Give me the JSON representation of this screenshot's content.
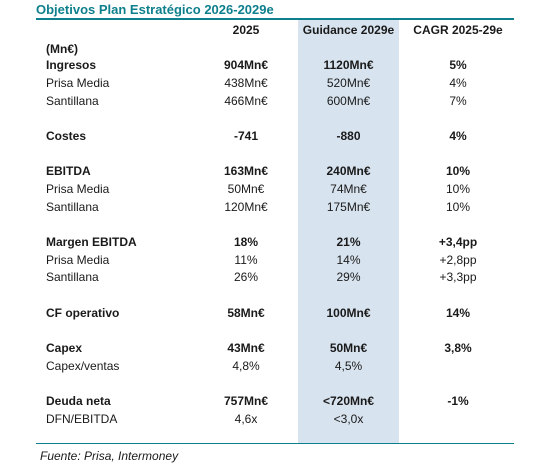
{
  "title": "Objetivos Plan Estratégico 2026-2029e",
  "header": {
    "col_2025": "2025",
    "col_guidance": "Guidance 2029e",
    "col_cagr": "CAGR 2025-29e"
  },
  "units": "(Mn€)",
  "rows": [
    {
      "label": "Ingresos",
      "v2025": "904Mn€",
      "guidance": "1120Mn€",
      "cagr": "5%"
    },
    {
      "label": "Prisa Media",
      "v2025": "438Mn€",
      "guidance": "520Mn€",
      "cagr": "4%"
    },
    {
      "label": "Santillana",
      "v2025": "466Mn€",
      "guidance": "600Mn€",
      "cagr": "7%"
    },
    {
      "label": "Costes",
      "v2025": "-741",
      "guidance": "-880",
      "cagr": "4%"
    },
    {
      "label": "EBITDA",
      "v2025": "163Mn€",
      "guidance": "240Mn€",
      "cagr": "10%"
    },
    {
      "label": "Prisa Media",
      "v2025": "50Mn€",
      "guidance": "74Mn€",
      "cagr": "10%"
    },
    {
      "label": "Santillana",
      "v2025": "120Mn€",
      "guidance": "175Mn€",
      "cagr": "10%"
    },
    {
      "label": "Margen EBITDA",
      "v2025": "18%",
      "guidance": "21%",
      "cagr": "+3,4pp"
    },
    {
      "label": "Prisa Media",
      "v2025": "11%",
      "guidance": "14%",
      "cagr": "+2,8pp"
    },
    {
      "label": "Santillana",
      "v2025": "26%",
      "guidance": "29%",
      "cagr": "+3,3pp"
    },
    {
      "label": "CF operativo",
      "v2025": "58Mn€",
      "guidance": "100Mn€",
      "cagr": "14%"
    },
    {
      "label": "Capex",
      "v2025": "43Mn€",
      "guidance": "50Mn€",
      "cagr": "3,8%"
    },
    {
      "label": "Capex/ventas",
      "v2025": "4,8%",
      "guidance": "4,5%",
      "cagr": ""
    },
    {
      "label": "Deuda neta",
      "v2025": "757Mn€",
      "guidance": "<720Mn€",
      "cagr": "-1%"
    },
    {
      "label": "DFN/EBITDA",
      "v2025": "4,6x",
      "guidance": "<3,0x",
      "cagr": ""
    }
  ],
  "source": "Fuente: Prisa, Intermoney"
}
